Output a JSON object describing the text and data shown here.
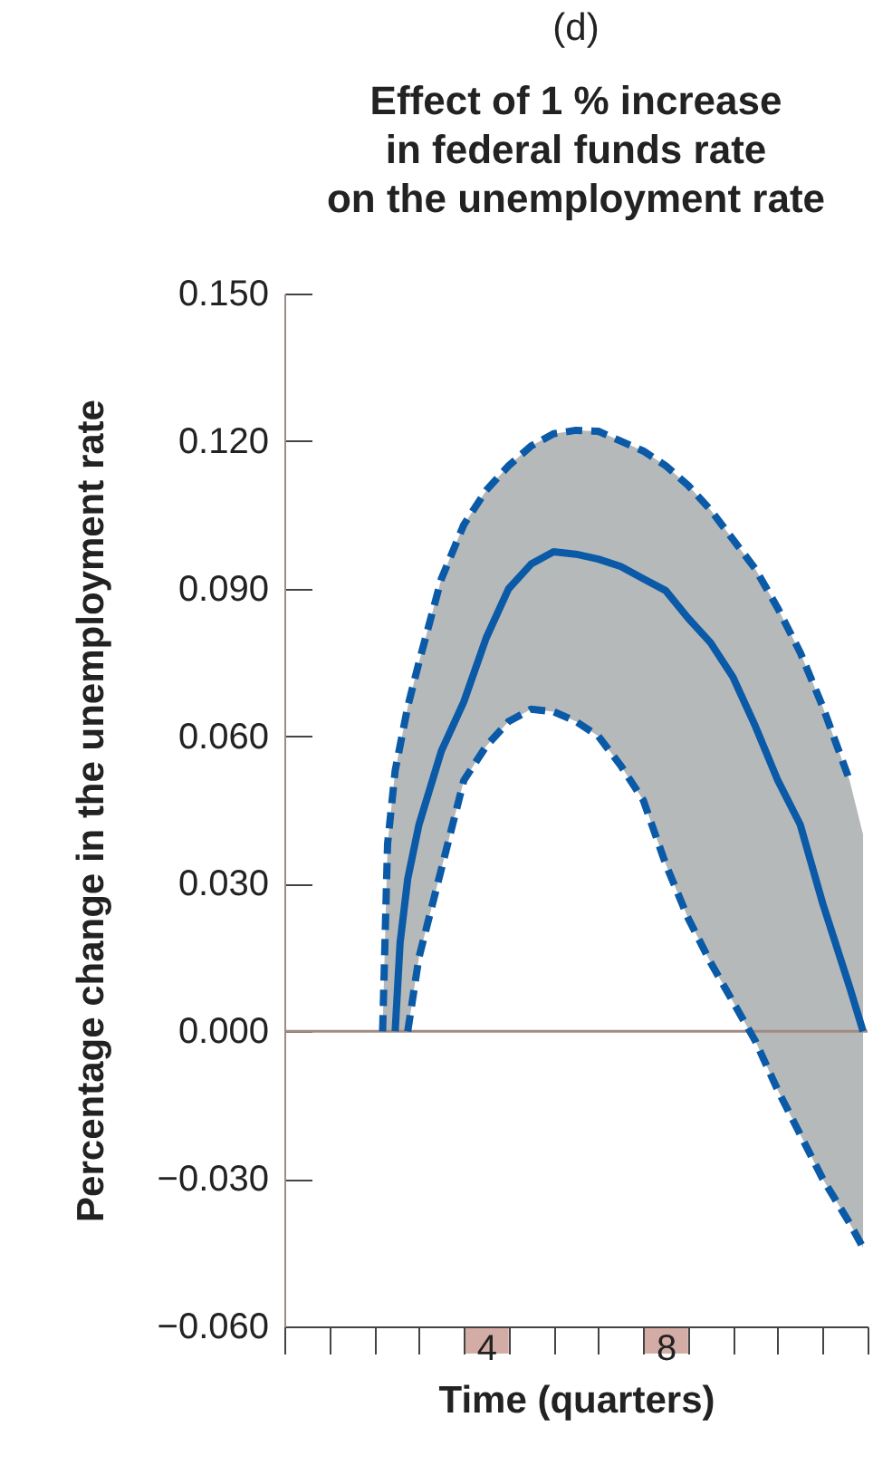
{
  "chart_data": {
    "type": "line",
    "title": "Effect of 1 % increase\nin federal funds rate\non the unemployment rate",
    "annotations": [
      "(d)"
    ],
    "xlabel": "Time (quarters)",
    "ylabel": "Percentage change in the unemployment rate",
    "xlim": [
      0,
      13
    ],
    "xticks": [
      {
        "value": 0,
        "label": null
      },
      {
        "value": 1,
        "label": null
      },
      {
        "value": 2,
        "label": null
      },
      {
        "value": 3,
        "label": null
      },
      {
        "value": 4,
        "label": null
      },
      {
        "value": 4.5,
        "label": "4"
      },
      {
        "value": 5,
        "label": null
      },
      {
        "value": 6,
        "label": null
      },
      {
        "value": 7,
        "label": null
      },
      {
        "value": 8,
        "label": null
      },
      {
        "value": 8.5,
        "label": "8"
      },
      {
        "value": 9,
        "label": null
      },
      {
        "value": 10,
        "label": null
      },
      {
        "value": 11,
        "label": null
      },
      {
        "value": 12,
        "label": null
      },
      {
        "value": 13,
        "label": null
      }
    ],
    "ylim": [
      -0.06,
      0.15
    ],
    "yticks": [
      {
        "value": -0.06,
        "label": "−0.060"
      },
      {
        "value": -0.03,
        "label": "−0.030"
      },
      {
        "value": 0,
        "label": "0.000"
      },
      {
        "value": 0.03,
        "label": "0.030"
      },
      {
        "value": 0.06,
        "label": "0.060"
      },
      {
        "value": 0.09,
        "label": "0.090"
      },
      {
        "value": 0.12,
        "label": "0.120"
      },
      {
        "value": 0.15,
        "label": "0.150"
      }
    ],
    "ref_lines": [
      {
        "axis": "y",
        "value": 0,
        "color": "#a38a80"
      }
    ],
    "series": [
      {
        "color": "#0a5aa8",
        "line_style": "solid",
        "x": [
          2.19,
          2.3,
          2.47,
          2.58,
          2.75,
          3,
          3.5,
          4,
          4.5,
          5,
          5.5,
          6,
          6.5,
          7,
          7.5,
          8,
          8.5,
          9,
          9.5,
          10,
          10.5,
          11,
          11.5,
          12,
          12.6,
          12.9
        ],
        "values": [
          null,
          null,
          0,
          0.018,
          0.031,
          0.042,
          0.057,
          0.067,
          0.08,
          0.09,
          0.095,
          0.0975,
          0.097,
          0.096,
          0.0945,
          0.092,
          0.0896,
          0.084,
          0.079,
          0.072,
          0.062,
          0.051,
          0.042,
          0.026,
          0.009,
          0
        ],
        "lower": [
          0,
          0,
          0,
          0,
          0,
          0.015,
          0.033,
          0.051,
          0.058,
          0.063,
          0.0655,
          0.065,
          0.063,
          0.06,
          0.054,
          0.047,
          0.034,
          0.023,
          0.014,
          0.006,
          -0.002,
          -0.012,
          -0.021,
          -0.03,
          -0.039,
          -0.044
        ],
        "upper": [
          0,
          0.038,
          0.053,
          0.058,
          0.066,
          0.075,
          0.092,
          0.103,
          0.11,
          0.115,
          0.119,
          0.1215,
          0.1222,
          0.122,
          0.12,
          0.118,
          0.115,
          0.111,
          0.106,
          0.1,
          0.094,
          0.086,
          0.077,
          0.066,
          0.051,
          0.04
        ]
      },
      {
        "color": "#0a5aa8",
        "line_style": "dashed",
        "x": [
          2.19,
          2.3,
          2.47,
          2.75,
          3,
          3.5,
          4,
          4.5,
          5,
          5.5,
          6,
          6.5,
          7,
          7.5,
          8,
          8.5,
          9,
          9.5,
          10,
          10.5,
          11,
          11.5,
          12,
          12.6
        ],
        "values": [
          0,
          0.038,
          0.053,
          0.066,
          0.075,
          0.092,
          0.103,
          0.11,
          0.115,
          0.119,
          0.1215,
          0.1222,
          0.122,
          0.12,
          0.118,
          0.115,
          0.111,
          0.106,
          0.1,
          0.094,
          0.086,
          0.077,
          0.066,
          0.051
        ]
      },
      {
        "color": "#0a5aa8",
        "line_style": "dashed",
        "x": [
          2.75,
          3,
          3.5,
          4,
          4.5,
          5,
          5.5,
          6,
          6.5,
          7,
          7.5,
          8,
          8.5,
          9,
          9.5,
          10,
          10.5,
          11,
          11.5,
          12,
          12.6,
          12.9
        ],
        "values": [
          0,
          0.015,
          0.033,
          0.051,
          0.058,
          0.063,
          0.0655,
          0.065,
          0.063,
          0.06,
          0.054,
          0.047,
          0.034,
          0.023,
          0.014,
          0.006,
          -0.002,
          -0.012,
          -0.021,
          -0.03,
          -0.039,
          -0.044
        ]
      }
    ]
  }
}
